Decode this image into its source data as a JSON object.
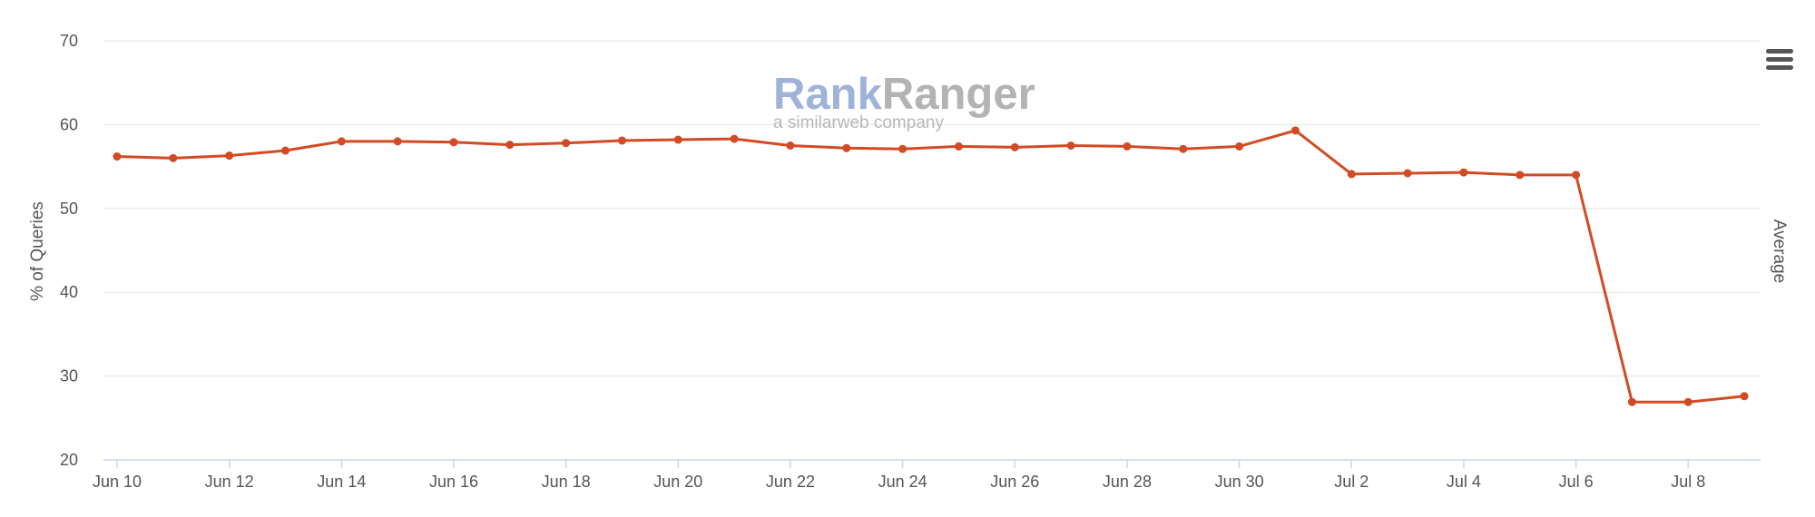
{
  "chart_data": {
    "type": "line",
    "title": "",
    "xlabel": "",
    "ylabel": "% of Queries",
    "ylim": [
      20,
      70
    ],
    "y_ticks": [
      20,
      30,
      40,
      50,
      60,
      70
    ],
    "grid": true,
    "legend": "none",
    "x": [
      "Jun 10",
      "Jun 11",
      "Jun 12",
      "Jun 13",
      "Jun 14",
      "Jun 15",
      "Jun 16",
      "Jun 17",
      "Jun 18",
      "Jun 19",
      "Jun 20",
      "Jun 21",
      "Jun 22",
      "Jun 23",
      "Jun 24",
      "Jun 25",
      "Jun 26",
      "Jun 27",
      "Jun 28",
      "Jun 29",
      "Jun 30",
      "Jul 1",
      "Jul 2",
      "Jul 3",
      "Jul 4",
      "Jul 5",
      "Jul 6",
      "Jul 7",
      "Jul 8",
      "Jul 9"
    ],
    "x_tick_labels": [
      "Jun 10",
      "Jun 12",
      "Jun 14",
      "Jun 16",
      "Jun 18",
      "Jun 20",
      "Jun 22",
      "Jun 24",
      "Jun 26",
      "Jun 28",
      "Jun 30",
      "Jul 2",
      "Jul 4",
      "Jul 6",
      "Jul 8"
    ],
    "series": [
      {
        "values": [
          56.2,
          56.0,
          56.3,
          56.9,
          58.0,
          58.0,
          57.9,
          57.6,
          57.8,
          58.1,
          58.2,
          58.3,
          57.5,
          57.2,
          57.1,
          57.4,
          57.3,
          57.5,
          57.4,
          57.1,
          57.4,
          59.3,
          54.1,
          54.2,
          54.3,
          54.0,
          54.0,
          26.9,
          26.9,
          27.6
        ]
      }
    ],
    "right_axis_label": "Average"
  },
  "branding": {
    "logo_rank": "Rank",
    "logo_ranger": "Ranger",
    "logo_tagline": "a similarweb company"
  },
  "colors": {
    "series": "#d24b24",
    "rank": "#9fb3d8",
    "ranger": "#b3b3b3",
    "menu_icon": "#555555"
  },
  "menu": {
    "icon": "hamburger-menu-icon"
  }
}
